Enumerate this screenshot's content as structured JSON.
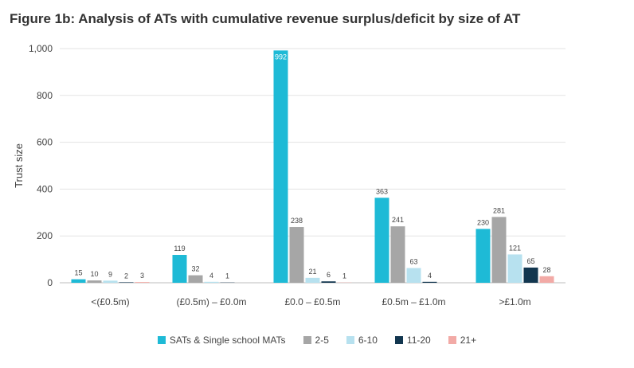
{
  "chart_data": {
    "type": "bar",
    "title": "Figure 1b: Analysis of ATs with cumulative revenue surplus/deficit by size of AT",
    "xlabel": "",
    "ylabel": "Trust size",
    "ylim": [
      0,
      1000
    ],
    "yticks": [
      "0",
      "200",
      "400",
      "600",
      "800",
      "1,000"
    ],
    "ytick_values": [
      0,
      200,
      400,
      600,
      800,
      1000
    ],
    "grid": true,
    "legend_position": "bottom",
    "categories": [
      "<(£0.5m)",
      "(£0.5m) – £0.0m",
      "£0.0 – £0.5m",
      "£0.5m – £1.0m",
      ">£1.0m"
    ],
    "series": [
      {
        "name": "SATs & Single school MATs",
        "color": "#1ebad6",
        "values": [
          15,
          119,
          992,
          363,
          230
        ]
      },
      {
        "name": "2-5",
        "color": "#a6a6a6",
        "values": [
          10,
          32,
          238,
          241,
          281
        ]
      },
      {
        "name": "6-10",
        "color": "#b7e1ef",
        "values": [
          9,
          4,
          21,
          63,
          121
        ]
      },
      {
        "name": "11-20",
        "color": "#12364f",
        "values": [
          2,
          1,
          6,
          4,
          65
        ]
      },
      {
        "name": "21+",
        "color": "#f2aaa6",
        "values": [
          3,
          0,
          1,
          0,
          28
        ]
      }
    ],
    "data_labels": [
      [
        "15",
        "119",
        "992",
        "363",
        "230"
      ],
      [
        "10",
        "32",
        "238",
        "241",
        "281"
      ],
      [
        "9",
        "4",
        "21",
        "63",
        "121"
      ],
      [
        "2",
        "1",
        "6",
        "4",
        "65"
      ],
      [
        "3",
        "",
        "1",
        "",
        "28"
      ]
    ]
  }
}
